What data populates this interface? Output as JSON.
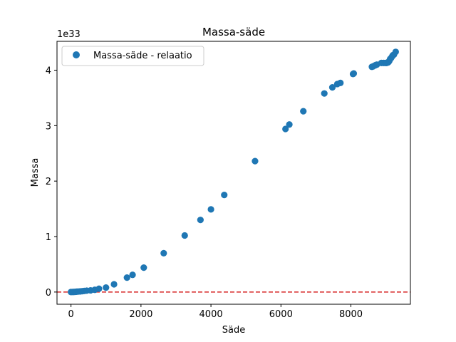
{
  "chart_data": {
    "type": "scatter",
    "title": "Massa-säde",
    "xlabel": "Säde",
    "ylabel": "Massa",
    "y_offset_label": "1e33",
    "xlim": [
      -400,
      9700
    ],
    "ylim": [
      -0.22,
      4.52
    ],
    "x_ticks": [
      0,
      2000,
      4000,
      6000,
      8000
    ],
    "x_tick_labels": [
      "0",
      "2000",
      "4000",
      "6000",
      "8000"
    ],
    "y_ticks": [
      0,
      1,
      2,
      3,
      4
    ],
    "y_tick_labels": [
      "0",
      "1",
      "2",
      "3",
      "4"
    ],
    "grid": false,
    "legend": {
      "location": "upper-left",
      "entries": [
        "Massa-säde - relaatio"
      ]
    },
    "series": [
      {
        "name": "Massa-säde - relaatio",
        "color": "#1f77b4",
        "marker": "circle",
        "x": [
          0,
          40,
          80,
          120,
          160,
          200,
          260,
          320,
          380,
          450,
          560,
          680,
          800,
          1000,
          1230,
          1600,
          1760,
          2080,
          2650,
          3250,
          3700,
          4000,
          4380,
          5260,
          6130,
          6240,
          6640,
          7240,
          7470,
          7610,
          7700,
          8060,
          8080,
          8600,
          8640,
          8700,
          8740,
          8870,
          8930,
          8980,
          9020,
          9060,
          9080,
          9100,
          9120,
          9150,
          9180,
          9200,
          9230,
          9280
        ],
        "y": [
          0.0,
          0.001,
          0.002,
          0.004,
          0.006,
          0.009,
          0.012,
          0.015,
          0.02,
          0.025,
          0.03,
          0.04,
          0.06,
          0.08,
          0.14,
          0.26,
          0.31,
          0.44,
          0.7,
          1.02,
          1.3,
          1.49,
          1.75,
          2.36,
          2.94,
          3.02,
          3.26,
          3.58,
          3.69,
          3.75,
          3.77,
          3.93,
          3.94,
          4.06,
          4.07,
          4.09,
          4.1,
          4.13,
          4.13,
          4.13,
          4.13,
          4.14,
          4.15,
          4.17,
          4.2,
          4.22,
          4.25,
          4.27,
          4.28,
          4.33
        ]
      }
    ],
    "reference_lines": [
      {
        "orientation": "horizontal",
        "y": 0,
        "color": "#d62728",
        "style": "dashed"
      }
    ]
  }
}
